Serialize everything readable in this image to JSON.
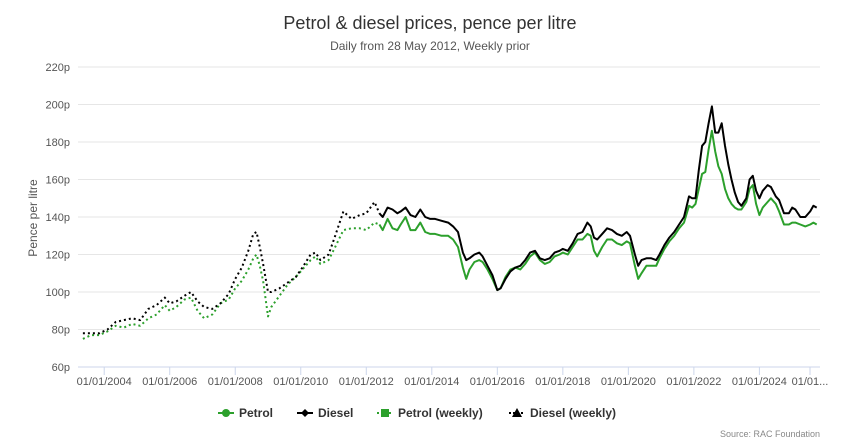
{
  "chart_data": {
    "type": "line",
    "title": "Petrol & diesel prices, pence per litre",
    "subtitle": "Daily from 28 May 2012, Weekly prior",
    "ylabel": "Pence per litre",
    "xlabel": "",
    "ylim": [
      60,
      220
    ],
    "xlim": [
      2003.25,
      2025.85
    ],
    "y_ticks": [
      60,
      80,
      100,
      120,
      140,
      160,
      180,
      200,
      220
    ],
    "y_tick_labels": [
      "60p",
      "80p",
      "100p",
      "120p",
      "140p",
      "160p",
      "180p",
      "200p",
      "220p"
    ],
    "x_ticks": [
      2004,
      2006,
      2008,
      2010,
      2012,
      2014,
      2016,
      2018,
      2020,
      2022,
      2024,
      2026
    ],
    "x_tick_labels": [
      "01/01/2004",
      "01/01/2006",
      "01/01/2008",
      "01/01/2010",
      "01/01/2012",
      "01/01/2014",
      "01/01/2016",
      "01/01/2018",
      "01/01/2020",
      "01/01/2022",
      "01/01/2024",
      "01/01..."
    ],
    "grid": true,
    "legend_position": "bottom",
    "credit": "Source: RAC Foundation",
    "series": [
      {
        "name": "Petrol",
        "color": "#2ca02c",
        "style": "solid",
        "marker": "circle",
        "points": [
          [
            2012.4,
            136
          ],
          [
            2012.5,
            133
          ],
          [
            2012.65,
            139
          ],
          [
            2012.8,
            134
          ],
          [
            2012.95,
            133
          ],
          [
            2013.05,
            136
          ],
          [
            2013.2,
            140
          ],
          [
            2013.35,
            133
          ],
          [
            2013.5,
            133
          ],
          [
            2013.65,
            137
          ],
          [
            2013.8,
            132
          ],
          [
            2013.95,
            131
          ],
          [
            2014.1,
            131
          ],
          [
            2014.3,
            130
          ],
          [
            2014.5,
            130
          ],
          [
            2014.65,
            128
          ],
          [
            2014.8,
            124
          ],
          [
            2014.95,
            113
          ],
          [
            2015.05,
            107
          ],
          [
            2015.15,
            112
          ],
          [
            2015.3,
            116
          ],
          [
            2015.45,
            117
          ],
          [
            2015.55,
            116
          ],
          [
            2015.7,
            112
          ],
          [
            2015.85,
            107
          ],
          [
            2016.0,
            101
          ],
          [
            2016.1,
            102
          ],
          [
            2016.25,
            108
          ],
          [
            2016.4,
            112
          ],
          [
            2016.55,
            113
          ],
          [
            2016.7,
            112
          ],
          [
            2016.85,
            115
          ],
          [
            2017.0,
            119
          ],
          [
            2017.15,
            121
          ],
          [
            2017.3,
            117
          ],
          [
            2017.45,
            115
          ],
          [
            2017.6,
            116
          ],
          [
            2017.75,
            119
          ],
          [
            2017.9,
            120
          ],
          [
            2018.0,
            121
          ],
          [
            2018.15,
            120
          ],
          [
            2018.3,
            124
          ],
          [
            2018.45,
            128
          ],
          [
            2018.6,
            128
          ],
          [
            2018.75,
            131
          ],
          [
            2018.85,
            130
          ],
          [
            2018.95,
            122
          ],
          [
            2019.05,
            119
          ],
          [
            2019.2,
            124
          ],
          [
            2019.35,
            128
          ],
          [
            2019.5,
            128
          ],
          [
            2019.65,
            126
          ],
          [
            2019.8,
            125
          ],
          [
            2019.95,
            127
          ],
          [
            2020.05,
            126
          ],
          [
            2020.2,
            114
          ],
          [
            2020.3,
            107
          ],
          [
            2020.4,
            110
          ],
          [
            2020.55,
            114
          ],
          [
            2020.7,
            114
          ],
          [
            2020.85,
            114
          ],
          [
            2020.95,
            118
          ],
          [
            2021.1,
            123
          ],
          [
            2021.25,
            127
          ],
          [
            2021.4,
            130
          ],
          [
            2021.55,
            134
          ],
          [
            2021.7,
            137
          ],
          [
            2021.85,
            146
          ],
          [
            2021.95,
            145
          ],
          [
            2022.05,
            147
          ],
          [
            2022.15,
            155
          ],
          [
            2022.25,
            163
          ],
          [
            2022.35,
            164
          ],
          [
            2022.45,
            176
          ],
          [
            2022.55,
            186
          ],
          [
            2022.65,
            175
          ],
          [
            2022.75,
            167
          ],
          [
            2022.85,
            163
          ],
          [
            2022.95,
            155
          ],
          [
            2023.05,
            150
          ],
          [
            2023.15,
            147
          ],
          [
            2023.25,
            145
          ],
          [
            2023.35,
            144
          ],
          [
            2023.45,
            144
          ],
          [
            2023.6,
            148
          ],
          [
            2023.7,
            155
          ],
          [
            2023.8,
            157
          ],
          [
            2023.9,
            147
          ],
          [
            2024.0,
            141
          ],
          [
            2024.1,
            145
          ],
          [
            2024.25,
            148
          ],
          [
            2024.35,
            150
          ],
          [
            2024.5,
            147
          ],
          [
            2024.6,
            143
          ],
          [
            2024.75,
            136
          ],
          [
            2024.9,
            136
          ],
          [
            2025.0,
            137
          ],
          [
            2025.1,
            137
          ],
          [
            2025.25,
            136
          ],
          [
            2025.4,
            135
          ],
          [
            2025.55,
            136
          ],
          [
            2025.65,
            137
          ],
          [
            2025.75,
            136
          ]
        ]
      },
      {
        "name": "Diesel",
        "color": "#000000",
        "style": "solid",
        "marker": "diamond",
        "points": [
          [
            2012.4,
            142
          ],
          [
            2012.5,
            140
          ],
          [
            2012.65,
            145
          ],
          [
            2012.8,
            144
          ],
          [
            2012.95,
            142
          ],
          [
            2013.05,
            143
          ],
          [
            2013.2,
            145
          ],
          [
            2013.35,
            141
          ],
          [
            2013.5,
            140
          ],
          [
            2013.65,
            144
          ],
          [
            2013.8,
            140
          ],
          [
            2013.95,
            139
          ],
          [
            2014.1,
            139
          ],
          [
            2014.3,
            138
          ],
          [
            2014.5,
            137
          ],
          [
            2014.65,
            135
          ],
          [
            2014.8,
            132
          ],
          [
            2014.95,
            121
          ],
          [
            2015.05,
            117
          ],
          [
            2015.15,
            118
          ],
          [
            2015.3,
            120
          ],
          [
            2015.45,
            121
          ],
          [
            2015.55,
            119
          ],
          [
            2015.7,
            114
          ],
          [
            2015.85,
            109
          ],
          [
            2016.0,
            101
          ],
          [
            2016.1,
            102
          ],
          [
            2016.25,
            107
          ],
          [
            2016.4,
            111
          ],
          [
            2016.55,
            113
          ],
          [
            2016.7,
            114
          ],
          [
            2016.85,
            117
          ],
          [
            2017.0,
            121
          ],
          [
            2017.15,
            122
          ],
          [
            2017.3,
            118
          ],
          [
            2017.45,
            117
          ],
          [
            2017.6,
            118
          ],
          [
            2017.75,
            121
          ],
          [
            2017.9,
            122
          ],
          [
            2018.0,
            123
          ],
          [
            2018.15,
            122
          ],
          [
            2018.3,
            126
          ],
          [
            2018.45,
            131
          ],
          [
            2018.6,
            132
          ],
          [
            2018.75,
            137
          ],
          [
            2018.85,
            135
          ],
          [
            2018.95,
            129
          ],
          [
            2019.05,
            128
          ],
          [
            2019.2,
            131
          ],
          [
            2019.35,
            134
          ],
          [
            2019.5,
            133
          ],
          [
            2019.65,
            131
          ],
          [
            2019.8,
            130
          ],
          [
            2019.95,
            132
          ],
          [
            2020.05,
            130
          ],
          [
            2020.2,
            120
          ],
          [
            2020.3,
            114
          ],
          [
            2020.4,
            117
          ],
          [
            2020.55,
            118
          ],
          [
            2020.7,
            118
          ],
          [
            2020.85,
            117
          ],
          [
            2020.95,
            120
          ],
          [
            2021.1,
            125
          ],
          [
            2021.25,
            129
          ],
          [
            2021.4,
            132
          ],
          [
            2021.55,
            136
          ],
          [
            2021.7,
            140
          ],
          [
            2021.85,
            151
          ],
          [
            2021.95,
            150
          ],
          [
            2022.05,
            150
          ],
          [
            2022.15,
            165
          ],
          [
            2022.25,
            178
          ],
          [
            2022.35,
            180
          ],
          [
            2022.45,
            190
          ],
          [
            2022.55,
            199
          ],
          [
            2022.65,
            185
          ],
          [
            2022.75,
            185
          ],
          [
            2022.85,
            190
          ],
          [
            2022.95,
            178
          ],
          [
            2023.05,
            168
          ],
          [
            2023.15,
            160
          ],
          [
            2023.25,
            153
          ],
          [
            2023.35,
            148
          ],
          [
            2023.45,
            146
          ],
          [
            2023.6,
            150
          ],
          [
            2023.7,
            160
          ],
          [
            2023.8,
            162
          ],
          [
            2023.9,
            154
          ],
          [
            2024.0,
            150
          ],
          [
            2024.1,
            154
          ],
          [
            2024.25,
            157
          ],
          [
            2024.35,
            156
          ],
          [
            2024.5,
            151
          ],
          [
            2024.6,
            149
          ],
          [
            2024.75,
            142
          ],
          [
            2024.9,
            142
          ],
          [
            2025.0,
            145
          ],
          [
            2025.1,
            144
          ],
          [
            2025.25,
            140
          ],
          [
            2025.4,
            140
          ],
          [
            2025.55,
            143
          ],
          [
            2025.65,
            146
          ],
          [
            2025.75,
            145
          ]
        ]
      },
      {
        "name": "Petrol (weekly)",
        "color": "#2ca02c",
        "style": "dotted",
        "marker": "square",
        "points": [
          [
            2003.35,
            75
          ],
          [
            2003.6,
            77
          ],
          [
            2003.85,
            77
          ],
          [
            2004.1,
            79
          ],
          [
            2004.35,
            82
          ],
          [
            2004.6,
            81
          ],
          [
            2004.85,
            83
          ],
          [
            2005.1,
            82
          ],
          [
            2005.35,
            86
          ],
          [
            2005.6,
            88
          ],
          [
            2005.85,
            93
          ],
          [
            2006.0,
            90
          ],
          [
            2006.2,
            92
          ],
          [
            2006.45,
            96
          ],
          [
            2006.65,
            97
          ],
          [
            2006.85,
            90
          ],
          [
            2007.05,
            86
          ],
          [
            2007.3,
            88
          ],
          [
            2007.55,
            94
          ],
          [
            2007.8,
            96
          ],
          [
            2008.0,
            102
          ],
          [
            2008.2,
            106
          ],
          [
            2008.4,
            112
          ],
          [
            2008.55,
            118
          ],
          [
            2008.65,
            120
          ],
          [
            2008.75,
            114
          ],
          [
            2008.85,
            106
          ],
          [
            2009.0,
            87
          ],
          [
            2009.1,
            92
          ],
          [
            2009.35,
            98
          ],
          [
            2009.6,
            104
          ],
          [
            2009.85,
            108
          ],
          [
            2010.05,
            112
          ],
          [
            2010.3,
            117
          ],
          [
            2010.45,
            119
          ],
          [
            2010.6,
            115
          ],
          [
            2010.85,
            117
          ],
          [
            2011.05,
            124
          ],
          [
            2011.3,
            133
          ],
          [
            2011.55,
            134
          ],
          [
            2011.8,
            134
          ],
          [
            2012.0,
            133
          ],
          [
            2012.25,
            137
          ],
          [
            2012.4,
            136
          ]
        ]
      },
      {
        "name": "Diesel (weekly)",
        "color": "#000000",
        "style": "dotted",
        "marker": "triangle",
        "points": [
          [
            2003.35,
            78
          ],
          [
            2003.6,
            78
          ],
          [
            2003.85,
            78
          ],
          [
            2004.1,
            80
          ],
          [
            2004.35,
            84
          ],
          [
            2004.6,
            85
          ],
          [
            2004.85,
            86
          ],
          [
            2005.1,
            85
          ],
          [
            2005.35,
            91
          ],
          [
            2005.6,
            93
          ],
          [
            2005.85,
            97
          ],
          [
            2006.0,
            94
          ],
          [
            2006.2,
            95
          ],
          [
            2006.45,
            98
          ],
          [
            2006.65,
            100
          ],
          [
            2006.85,
            95
          ],
          [
            2007.05,
            92
          ],
          [
            2007.3,
            91
          ],
          [
            2007.55,
            94
          ],
          [
            2007.8,
            99
          ],
          [
            2008.0,
            107
          ],
          [
            2008.2,
            113
          ],
          [
            2008.4,
            122
          ],
          [
            2008.55,
            131
          ],
          [
            2008.65,
            132
          ],
          [
            2008.75,
            124
          ],
          [
            2008.85,
            115
          ],
          [
            2009.0,
            100
          ],
          [
            2009.1,
            100
          ],
          [
            2009.35,
            102
          ],
          [
            2009.6,
            105
          ],
          [
            2009.85,
            108
          ],
          [
            2010.05,
            113
          ],
          [
            2010.3,
            120
          ],
          [
            2010.45,
            121
          ],
          [
            2010.6,
            117
          ],
          [
            2010.85,
            120
          ],
          [
            2011.05,
            130
          ],
          [
            2011.3,
            143
          ],
          [
            2011.55,
            139
          ],
          [
            2011.8,
            141
          ],
          [
            2012.0,
            142
          ],
          [
            2012.25,
            148
          ],
          [
            2012.4,
            142
          ]
        ]
      }
    ]
  }
}
